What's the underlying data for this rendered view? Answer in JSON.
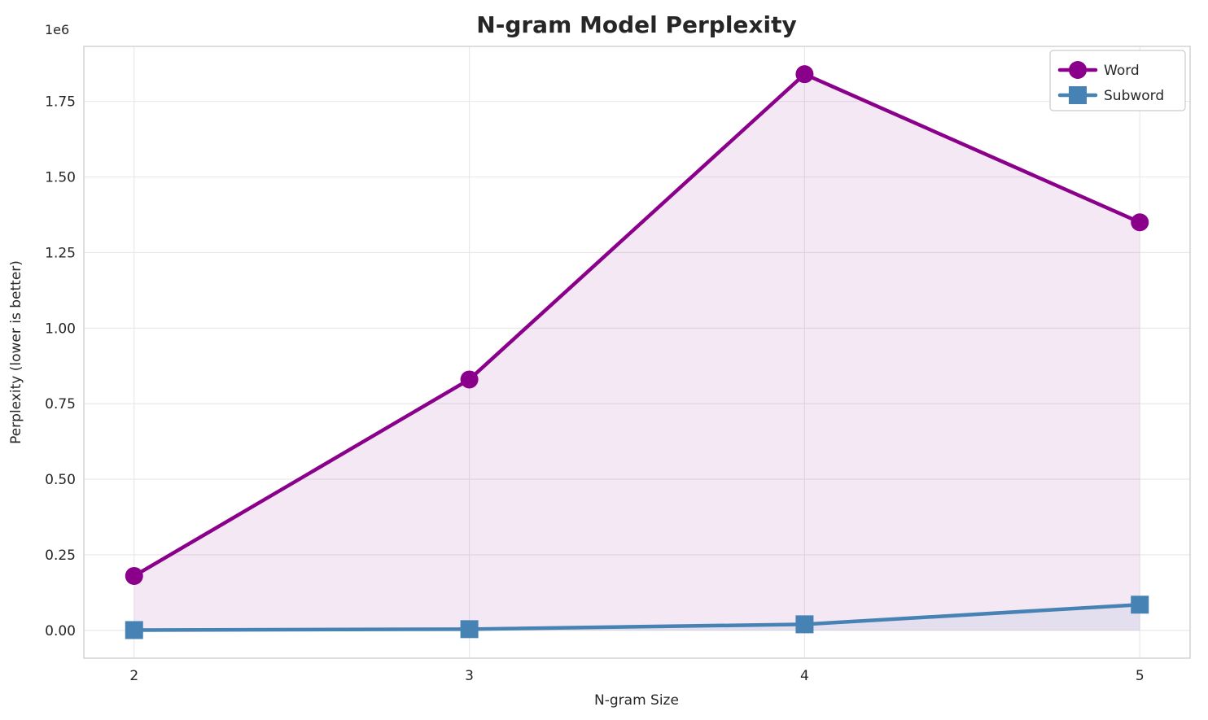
{
  "chart_data": {
    "type": "line",
    "title": "N-gram Model Perplexity",
    "xlabel": "N-gram Size",
    "ylabel": "Perplexity (lower is better)",
    "x": [
      2,
      3,
      4,
      5
    ],
    "series": [
      {
        "name": "Word",
        "values": [
          180000,
          830000,
          1840000,
          1350000
        ],
        "color": "#8B008B",
        "marker": "circle"
      },
      {
        "name": "Subword",
        "values": [
          1000,
          4000,
          20000,
          85000
        ],
        "color": "#4682B4",
        "marker": "square"
      }
    ],
    "xlim": [
      1.85,
      5.15
    ],
    "ylim": [
      -92000,
      1932000
    ],
    "xticks": [
      2,
      3,
      4,
      5
    ],
    "xtick_labels": [
      "2",
      "3",
      "4",
      "5"
    ],
    "yticks": [
      0,
      250000,
      500000,
      750000,
      1000000,
      1250000,
      1500000,
      1750000
    ],
    "ytick_labels": [
      "0.00",
      "0.25",
      "0.50",
      "0.75",
      "1.00",
      "1.25",
      "1.50",
      "1.75"
    ],
    "y_offset_label": "1e6",
    "grid": true,
    "fill_to_zero": true,
    "fill_alpha": 0.09,
    "legend_position": "upper right",
    "legend": [
      "Word",
      "Subword"
    ],
    "line_width": 4.5,
    "marker_size": 22
  },
  "colors": {
    "text": "#262626",
    "grid": "#e7e7e7",
    "spine": "#cccccc",
    "background": "#ffffff",
    "word_series": "#8B008B",
    "subword_series": "#4682B4"
  }
}
